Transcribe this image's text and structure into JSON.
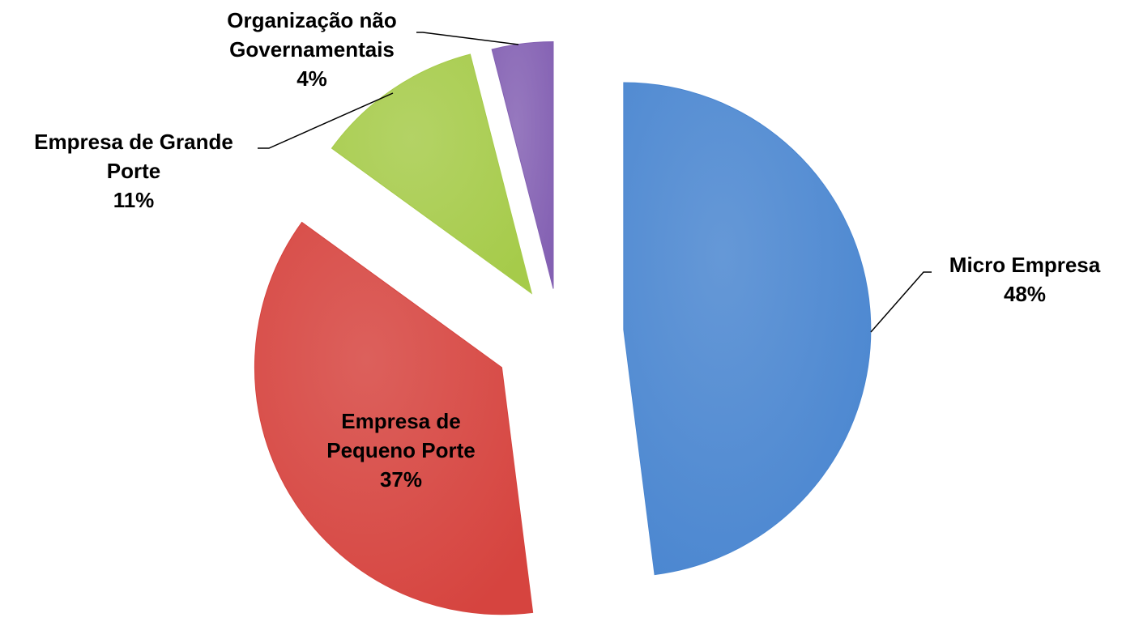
{
  "chart_data": {
    "type": "pie",
    "categories": [
      "Micro Empresa",
      "Empresa de Pequeno Porte",
      "Empresa de Grande Porte",
      "Organização não Governamentais"
    ],
    "values": [
      48,
      37,
      11,
      4
    ],
    "value_labels": [
      "48%",
      "37%",
      "11%",
      "4%"
    ],
    "colors": [
      "#4a86d0",
      "#d6443f",
      "#a6cb4a",
      "#8461b3"
    ]
  }
}
